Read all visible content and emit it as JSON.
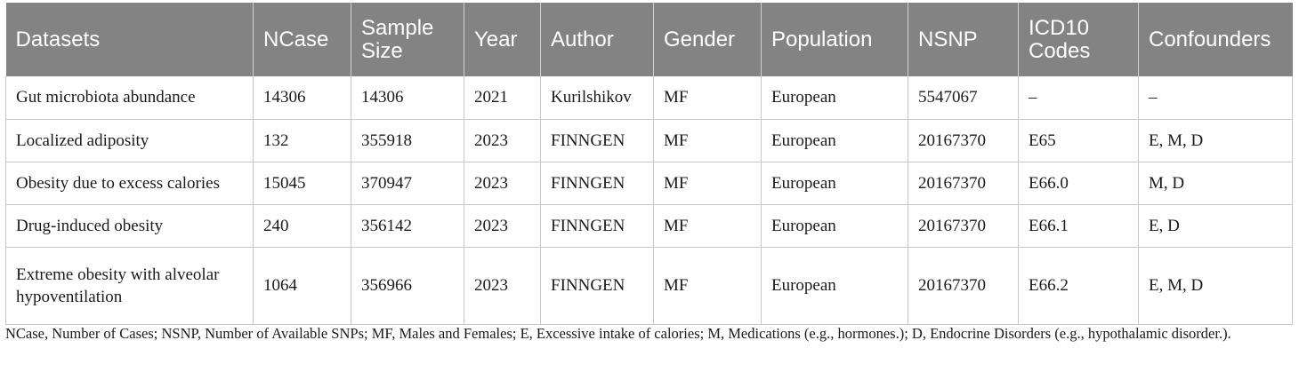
{
  "table": {
    "headers": [
      "Datasets",
      "NCase",
      "Sample Size",
      "Year",
      "Author",
      "Gender",
      "Population",
      "NSNP",
      "ICD10 Codes",
      "Confounders"
    ],
    "rows": [
      [
        "Gut microbiota abundance",
        "14306",
        "14306",
        "2021",
        "Kurilshikov",
        "MF",
        "European",
        "5547067",
        "–",
        "–"
      ],
      [
        "Localized adiposity",
        "132",
        "355918",
        "2023",
        "FINNGEN",
        "MF",
        "European",
        "20167370",
        "E65",
        "E, M, D"
      ],
      [
        "Obesity due to excess calories",
        "15045",
        "370947",
        "2023",
        "FINNGEN",
        "MF",
        "European",
        "20167370",
        "E66.0",
        "M, D"
      ],
      [
        "Drug-induced obesity",
        "240",
        "356142",
        "2023",
        "FINNGEN",
        "MF",
        "European",
        "20167370",
        "E66.1",
        "E, D"
      ],
      [
        "Extreme obesity with alveolar hypoventilation",
        "1064",
        "356966",
        "2023",
        "FINNGEN",
        "MF",
        "European",
        "20167370",
        "E66.2",
        "E, M, D"
      ]
    ]
  },
  "footnote": "NCase, Number of Cases; NSNP, Number of Available SNPs; MF, Males and Females; E, Excessive intake of calories; M, Medications (e.g., hormones.); D, Endocrine Disorders (e.g., hypothalamic disorder.)."
}
